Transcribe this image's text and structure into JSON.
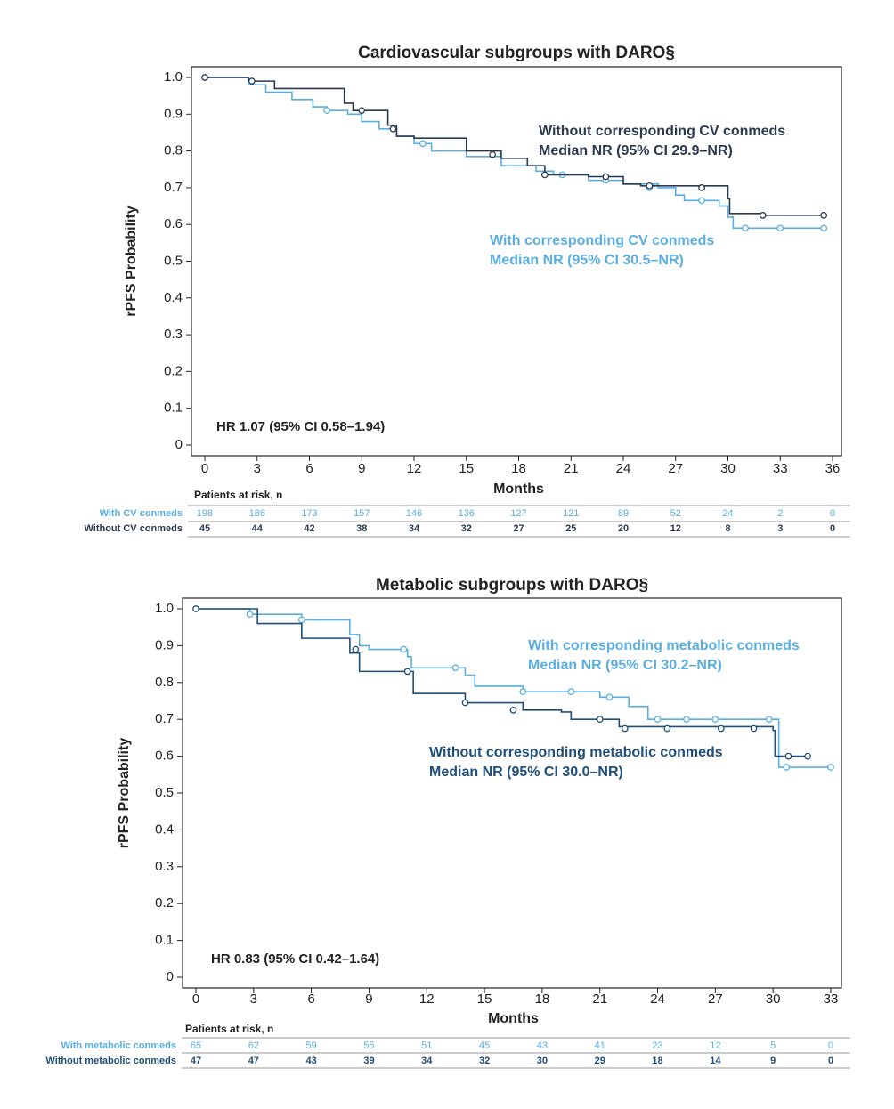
{
  "chart_data": [
    {
      "type": "step",
      "title": "Cardiovascular subgroups with DARO§",
      "xlabel": "Months",
      "ylabel": "rPFS Probability",
      "xlim": [
        0,
        36
      ],
      "xticks": [
        0,
        3,
        6,
        9,
        12,
        15,
        18,
        21,
        24,
        27,
        30,
        33,
        36
      ],
      "ylim": [
        0,
        1
      ],
      "yticks": [
        0,
        0.1,
        0.2,
        0.3,
        0.4,
        0.5,
        0.6,
        0.7,
        0.8,
        0.9,
        {
          "value": 1,
          "label": "1.0"
        }
      ],
      "annotation": "HR 1.07 (95% CI 0.58–1.94)",
      "series": [
        {
          "name": "With corresponding CV conmeds",
          "median": "Median NR (95% CI 30.5–NR)",
          "color": "#5aaee0",
          "x": [
            0,
            2.5,
            3.5,
            5,
            6.2,
            7,
            8.2,
            9,
            10,
            11,
            12,
            13,
            15,
            17,
            19,
            20,
            22,
            24,
            26,
            27,
            27.5,
            29.5,
            30,
            30.3,
            35.5
          ],
          "values": [
            1,
            0.98,
            0.96,
            0.94,
            0.92,
            0.91,
            0.9,
            0.88,
            0.86,
            0.84,
            0.82,
            0.8,
            0.785,
            0.76,
            0.745,
            0.735,
            0.72,
            0.71,
            0.7,
            0.68,
            0.665,
            0.65,
            0.62,
            0.59,
            0.59
          ],
          "censored_x": [
            7,
            12.5,
            20.5,
            23,
            25.5,
            28.5,
            31,
            33,
            35.5
          ],
          "censored_values": [
            0.91,
            0.82,
            0.735,
            0.72,
            0.7,
            0.665,
            0.59,
            0.59,
            0.59
          ]
        },
        {
          "name": "Without corresponding CV conmeds",
          "median": "Median NR (95% CI 29.9–NR)",
          "color": "#2b3a4f",
          "x": [
            0,
            2.5,
            4,
            8,
            8.5,
            10.5,
            11,
            12,
            15,
            17,
            18.5,
            19.5,
            22,
            24,
            25,
            30,
            30.1,
            32,
            35.5
          ],
          "values": [
            1,
            0.99,
            0.97,
            0.93,
            0.91,
            0.87,
            0.84,
            0.835,
            0.8,
            0.78,
            0.76,
            0.735,
            0.73,
            0.71,
            0.705,
            0.67,
            0.63,
            0.625,
            0.625
          ],
          "censored_x": [
            0,
            2.7,
            9,
            10.8,
            16.5,
            19.5,
            23,
            25.5,
            28.5,
            32,
            35.5
          ],
          "censored_values": [
            1,
            0.99,
            0.91,
            0.86,
            0.79,
            0.735,
            0.73,
            0.705,
            0.7,
            0.625,
            0.625
          ]
        }
      ],
      "risk_title": "Patients at risk, n",
      "risk_rows": [
        {
          "name": "With CV conmeds",
          "color": "#5aaee0",
          "values": [
            198,
            186,
            173,
            157,
            146,
            136,
            127,
            121,
            89,
            52,
            24,
            2,
            0
          ]
        },
        {
          "name": "Without CV conmeds",
          "color": "#2b3a4f",
          "values": [
            45,
            44,
            42,
            38,
            34,
            32,
            27,
            25,
            20,
            12,
            8,
            3,
            0
          ]
        }
      ]
    },
    {
      "type": "step",
      "title": "Metabolic subgroups with DARO§",
      "xlabel": "Months",
      "ylabel": "rPFS Probability",
      "xlim": [
        0,
        33
      ],
      "xticks": [
        0,
        3,
        6,
        9,
        12,
        15,
        18,
        21,
        24,
        27,
        30,
        33
      ],
      "ylim": [
        0,
        1
      ],
      "yticks": [
        0,
        0.1,
        0.2,
        0.3,
        0.4,
        0.5,
        0.6,
        0.7,
        0.8,
        0.9,
        {
          "value": 1,
          "label": "1.0"
        }
      ],
      "annotation": "HR 0.83 (95% CI 0.42–1.64)",
      "series": [
        {
          "name": "With corresponding metabolic conmeds",
          "median": "Median NR (95% CI 30.2–NR)",
          "color": "#5aaee0",
          "x": [
            0,
            2.8,
            5.5,
            8,
            8.5,
            9,
            11,
            11.2,
            14,
            14.5,
            17,
            21,
            22.5,
            23.5,
            30,
            30.3,
            33
          ],
          "values": [
            1,
            0.985,
            0.97,
            0.93,
            0.9,
            0.89,
            0.87,
            0.84,
            0.82,
            0.79,
            0.775,
            0.76,
            0.735,
            0.7,
            0.7,
            0.57,
            0.57
          ],
          "censored_x": [
            2.8,
            5.5,
            10.8,
            13.5,
            17,
            19.5,
            21.5,
            24,
            25.5,
            27,
            29.8,
            30.7,
            33
          ],
          "censored_values": [
            0.985,
            0.97,
            0.89,
            0.84,
            0.775,
            0.775,
            0.76,
            0.7,
            0.7,
            0.7,
            0.7,
            0.57,
            0.57
          ]
        },
        {
          "name": "Without corresponding metabolic conmeds",
          "median": "Median NR (95% CI 30.0–NR)",
          "color": "#1f4e79",
          "x": [
            0,
            3.2,
            5.5,
            8,
            8.5,
            11,
            11.3,
            14,
            17,
            19,
            19.5,
            22,
            30,
            30.1,
            31.8
          ],
          "values": [
            1,
            0.96,
            0.92,
            0.88,
            0.83,
            0.83,
            0.77,
            0.745,
            0.725,
            0.72,
            0.7,
            0.68,
            0.67,
            0.6,
            0.6
          ],
          "censored_x": [
            0,
            8.3,
            11,
            14,
            16.5,
            21,
            22.3,
            24.5,
            27.3,
            29,
            30.8,
            31.8
          ],
          "censored_values": [
            1,
            0.89,
            0.83,
            0.745,
            0.725,
            0.7,
            0.675,
            0.675,
            0.675,
            0.675,
            0.6,
            0.6
          ]
        }
      ],
      "risk_title": "Patients at risk, n",
      "risk_rows": [
        {
          "name": "With metabolic conmeds",
          "color": "#5aaee0",
          "values": [
            65,
            62,
            59,
            55,
            51,
            45,
            43,
            41,
            23,
            12,
            5,
            0
          ]
        },
        {
          "name": "Without metabolic conmeds",
          "color": "#1f4e79",
          "values": [
            47,
            47,
            43,
            39,
            34,
            32,
            30,
            29,
            18,
            14,
            9,
            0
          ]
        }
      ]
    }
  ]
}
